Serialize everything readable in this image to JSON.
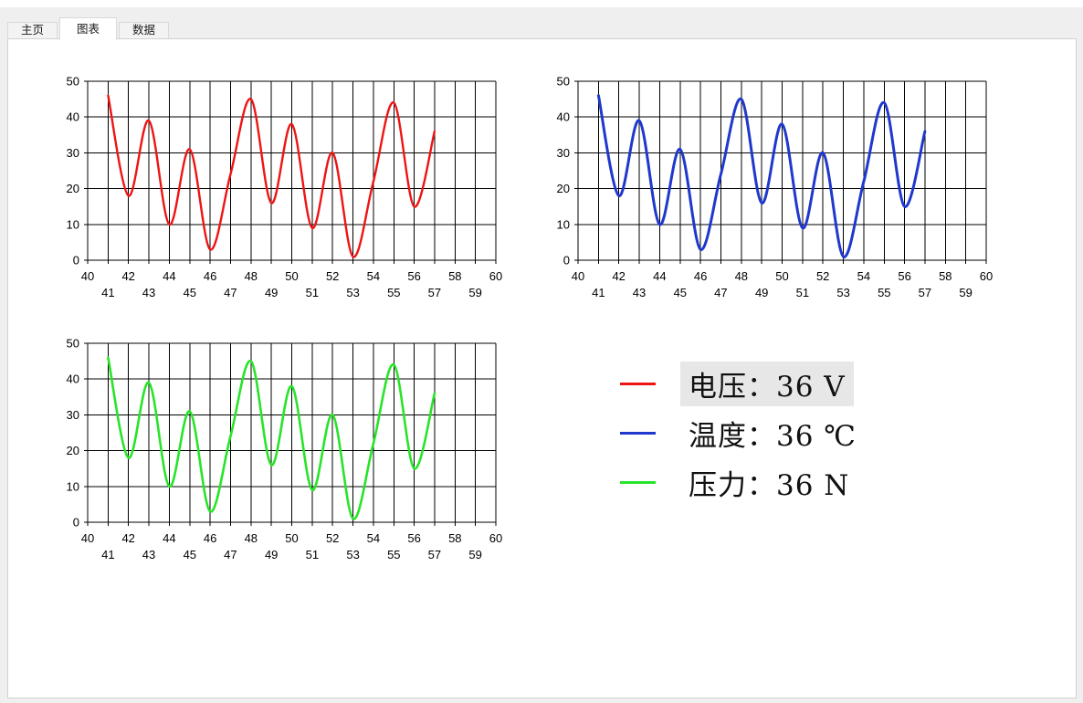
{
  "window": {
    "background": "#efefef",
    "panel_background": "#ffffff",
    "panel_border": "#d2d2d2",
    "highlight": "#e7e7e7",
    "grid_color": "#000000"
  },
  "tabs": [
    {
      "label": "主页",
      "active": false
    },
    {
      "label": "图表",
      "active": true
    },
    {
      "label": "数据",
      "active": false
    }
  ],
  "chart_data": [
    {
      "type": "line",
      "x": [
        41,
        42,
        43,
        44,
        45,
        46,
        47,
        48,
        49,
        50,
        51,
        52,
        53,
        54,
        55,
        56,
        57
      ],
      "series": [
        {
          "name": "电压",
          "color": "#ee1414",
          "stroke_width": 2.4,
          "values": [
            46,
            18,
            39,
            10,
            31,
            3,
            24,
            45,
            16,
            38,
            9,
            30,
            1,
            22,
            44,
            15,
            36
          ]
        }
      ],
      "xlim": [
        40,
        60
      ],
      "ylim": [
        0,
        50
      ],
      "xticks_row1": [
        40,
        42,
        44,
        46,
        48,
        50,
        52,
        54,
        56,
        58,
        60
      ],
      "xticks_row2": [
        41,
        43,
        45,
        47,
        49,
        51,
        53,
        55,
        57,
        59
      ],
      "yticks": [
        0,
        10,
        20,
        30,
        40,
        50
      ],
      "grid": true,
      "legend_position": "none",
      "xlabel": "",
      "ylabel": "",
      "title": ""
    },
    {
      "type": "line",
      "x": [
        41,
        42,
        43,
        44,
        45,
        46,
        47,
        48,
        49,
        50,
        51,
        52,
        53,
        54,
        55,
        56,
        57
      ],
      "series": [
        {
          "name": "温度",
          "color": "#2038cc",
          "stroke_width": 3,
          "values": [
            46,
            18,
            39,
            10,
            31,
            3,
            24,
            45,
            16,
            38,
            9,
            30,
            1,
            22,
            44,
            15,
            36
          ]
        }
      ],
      "xlim": [
        40,
        60
      ],
      "ylim": [
        0,
        50
      ],
      "xticks_row1": [
        40,
        42,
        44,
        46,
        48,
        50,
        52,
        54,
        56,
        58,
        60
      ],
      "xticks_row2": [
        41,
        43,
        45,
        47,
        49,
        51,
        53,
        55,
        57,
        59
      ],
      "yticks": [
        0,
        10,
        20,
        30,
        40,
        50
      ],
      "grid": true,
      "legend_position": "none",
      "xlabel": "",
      "ylabel": "",
      "title": ""
    },
    {
      "type": "line",
      "x": [
        41,
        42,
        43,
        44,
        45,
        46,
        47,
        48,
        49,
        50,
        51,
        52,
        53,
        54,
        55,
        56,
        57
      ],
      "series": [
        {
          "name": "压力",
          "color": "#28e428",
          "stroke_width": 2.6,
          "values": [
            46,
            18,
            39,
            10,
            31,
            3,
            24,
            45,
            16,
            38,
            9,
            30,
            1,
            22,
            44,
            15,
            36
          ]
        }
      ],
      "xlim": [
        40,
        60
      ],
      "ylim": [
        0,
        50
      ],
      "xticks_row1": [
        40,
        42,
        44,
        46,
        48,
        50,
        52,
        54,
        56,
        58,
        60
      ],
      "xticks_row2": [
        41,
        43,
        45,
        47,
        49,
        51,
        53,
        55,
        57,
        59
      ],
      "yticks": [
        0,
        10,
        20,
        30,
        40,
        50
      ],
      "grid": true,
      "legend_position": "none",
      "xlabel": "",
      "ylabel": "",
      "title": ""
    }
  ],
  "legend": {
    "items": [
      {
        "series": "电压",
        "text": "电压：36 V",
        "color": "#ee1414",
        "highlighted": true
      },
      {
        "series": "温度",
        "text": "温度：36 ℃",
        "color": "#2038cc",
        "highlighted": false
      },
      {
        "series": "压力",
        "text": "压力：36 N",
        "color": "#28e428",
        "highlighted": false
      }
    ]
  }
}
